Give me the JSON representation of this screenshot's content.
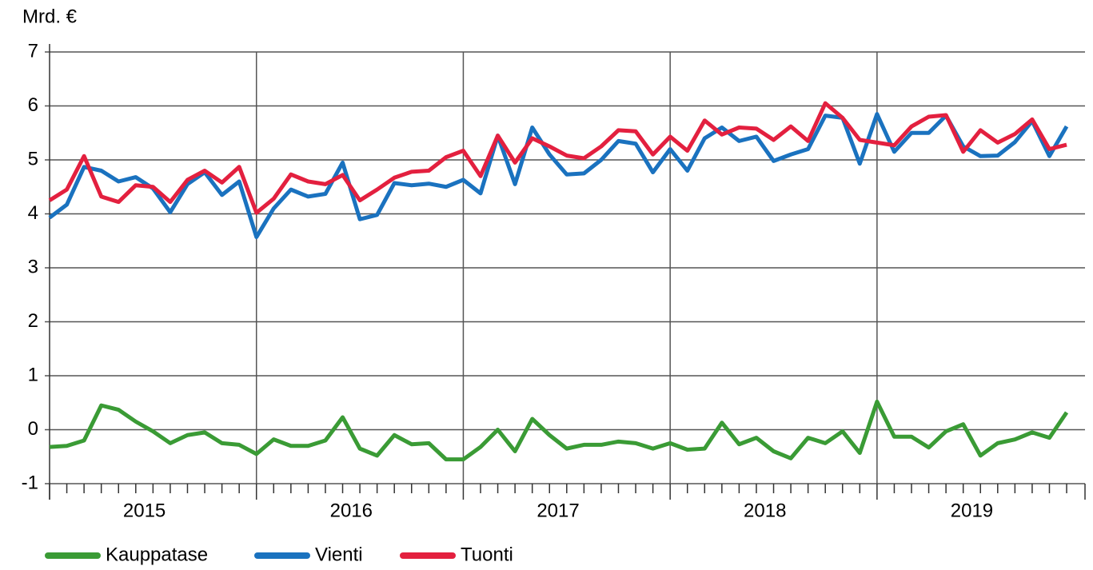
{
  "chart_data": {
    "type": "line",
    "y_label": "Mrd. €",
    "categories": [
      "2015",
      null,
      null,
      null,
      null,
      null,
      null,
      null,
      null,
      null,
      null,
      null,
      "2016",
      null,
      null,
      null,
      null,
      null,
      null,
      null,
      null,
      null,
      null,
      null,
      "2017",
      null,
      null,
      null,
      null,
      null,
      null,
      null,
      null,
      null,
      null,
      null,
      "2018",
      null,
      null,
      null,
      null,
      null,
      null,
      null,
      null,
      null,
      null,
      null,
      "2019",
      null,
      null,
      null,
      null,
      null,
      null,
      null,
      null,
      null,
      null,
      null
    ],
    "ylim": [
      -1,
      7
    ],
    "yticks": [
      -1,
      0,
      1,
      2,
      3,
      4,
      5,
      6,
      7
    ],
    "grid": true,
    "legend": "bottom",
    "series": [
      {
        "name": "Kauppatase",
        "color": "#3a9b35",
        "values": [
          -0.32,
          -0.3,
          -0.2,
          0.45,
          0.37,
          0.15,
          -0.03,
          -0.25,
          -0.1,
          -0.05,
          -0.25,
          -0.28,
          -0.45,
          -0.18,
          -0.3,
          -0.3,
          -0.2,
          0.23,
          -0.35,
          -0.48,
          -0.1,
          -0.27,
          -0.25,
          -0.55,
          -0.55,
          -0.32,
          0,
          -0.4,
          0.2,
          -0.1,
          -0.35,
          -0.28,
          -0.28,
          -0.22,
          -0.25,
          -0.35,
          -0.25,
          -0.37,
          -0.35,
          0.13,
          -0.27,
          -0.15,
          -0.4,
          -0.53,
          -0.15,
          -0.25,
          -0.03,
          -0.43,
          0.52,
          -0.13,
          -0.13,
          -0.33,
          -0.03,
          0.1,
          -0.48,
          -0.25,
          -0.18,
          -0.05,
          -0.15,
          0.32
        ]
      },
      {
        "name": "Vienti",
        "color": "#1a72bf",
        "values": [
          3.93,
          4.17,
          4.87,
          4.8,
          4.6,
          4.68,
          4.47,
          4.03,
          4.55,
          4.77,
          4.35,
          4.6,
          3.57,
          4.1,
          4.45,
          4.32,
          4.37,
          4.95,
          3.9,
          3.98,
          4.57,
          4.53,
          4.56,
          4.5,
          4.63,
          4.38,
          5.45,
          4.55,
          5.6,
          5.1,
          4.73,
          4.75,
          5.0,
          5.35,
          5.3,
          4.77,
          5.2,
          4.8,
          5.4,
          5.6,
          5.35,
          5.43,
          4.98,
          5.1,
          5.2,
          5.82,
          5.78,
          4.93,
          5.85,
          5.15,
          5.5,
          5.5,
          5.82,
          5.25,
          5.07,
          5.08,
          5.33,
          5.72,
          5.07,
          5.62
        ]
      },
      {
        "name": "Tuonti",
        "color": "#e3203f",
        "values": [
          4.25,
          4.45,
          5.07,
          4.32,
          4.22,
          4.53,
          4.5,
          4.22,
          4.63,
          4.8,
          4.58,
          4.87,
          4.02,
          4.28,
          4.73,
          4.6,
          4.55,
          4.72,
          4.25,
          4.45,
          4.67,
          4.78,
          4.8,
          5.05,
          5.17,
          4.7,
          5.45,
          4.95,
          5.4,
          5.25,
          5.08,
          5.03,
          5.25,
          5.55,
          5.53,
          5.1,
          5.43,
          5.17,
          5.73,
          5.47,
          5.6,
          5.58,
          5.37,
          5.62,
          5.35,
          6.05,
          5.78,
          5.37,
          5.32,
          5.27,
          5.62,
          5.8,
          5.83,
          5.15,
          5.55,
          5.32,
          5.48,
          5.75,
          5.2,
          5.28
        ]
      }
    ]
  }
}
